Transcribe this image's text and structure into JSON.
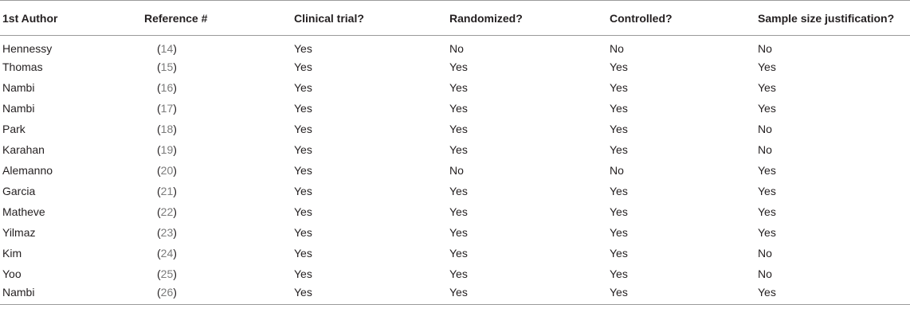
{
  "table": {
    "headers": [
      "1st Author",
      "Reference #",
      "Clinical trial?",
      "Randomized?",
      "Controlled?",
      "Sample size justification?"
    ],
    "rows": [
      {
        "author": "Hennessy",
        "ref": "14",
        "clinical": "Yes",
        "randomized": "No",
        "controlled": "No",
        "sample": "No"
      },
      {
        "author": "Thomas",
        "ref": "15",
        "clinical": "Yes",
        "randomized": "Yes",
        "controlled": "Yes",
        "sample": "Yes"
      },
      {
        "author": "Nambi",
        "ref": "16",
        "clinical": "Yes",
        "randomized": "Yes",
        "controlled": "Yes",
        "sample": "Yes"
      },
      {
        "author": "Nambi",
        "ref": "17",
        "clinical": "Yes",
        "randomized": "Yes",
        "controlled": "Yes",
        "sample": "Yes"
      },
      {
        "author": "Park",
        "ref": "18",
        "clinical": "Yes",
        "randomized": "Yes",
        "controlled": "Yes",
        "sample": "No"
      },
      {
        "author": "Karahan",
        "ref": "19",
        "clinical": "Yes",
        "randomized": "Yes",
        "controlled": "Yes",
        "sample": "No"
      },
      {
        "author": "Alemanno",
        "ref": "20",
        "clinical": "Yes",
        "randomized": "No",
        "controlled": "No",
        "sample": "Yes"
      },
      {
        "author": "Garcia",
        "ref": "21",
        "clinical": "Yes",
        "randomized": "Yes",
        "controlled": "Yes",
        "sample": "Yes"
      },
      {
        "author": "Matheve",
        "ref": "22",
        "clinical": "Yes",
        "randomized": "Yes",
        "controlled": "Yes",
        "sample": "Yes"
      },
      {
        "author": "Yilmaz",
        "ref": "23",
        "clinical": "Yes",
        "randomized": "Yes",
        "controlled": "Yes",
        "sample": "Yes"
      },
      {
        "author": "Kim",
        "ref": "24",
        "clinical": "Yes",
        "randomized": "Yes",
        "controlled": "Yes",
        "sample": "No"
      },
      {
        "author": "Yoo",
        "ref": "25",
        "clinical": "Yes",
        "randomized": "Yes",
        "controlled": "Yes",
        "sample": "No"
      },
      {
        "author": "Nambi",
        "ref": "26",
        "clinical": "Yes",
        "randomized": "Yes",
        "controlled": "Yes",
        "sample": "Yes"
      }
    ]
  },
  "colors": {
    "text": "#231f20",
    "reference_number": "#7a7a7a",
    "rule": "#9a9a9a"
  }
}
